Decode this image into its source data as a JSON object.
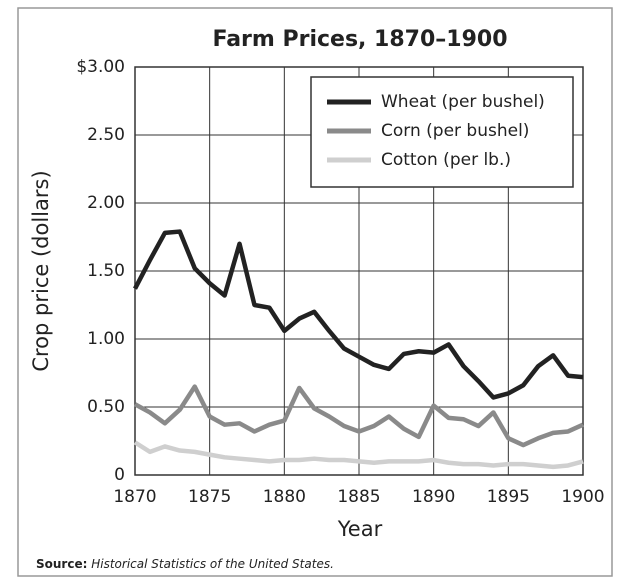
{
  "chart_data": {
    "type": "line",
    "title": "Farm Prices, 1870–1900",
    "x_label": "Year",
    "y_label": "Crop price  (dollars)",
    "x": [
      1870,
      1871,
      1872,
      1873,
      1874,
      1875,
      1876,
      1877,
      1878,
      1879,
      1880,
      1881,
      1882,
      1883,
      1884,
      1885,
      1886,
      1887,
      1888,
      1889,
      1890,
      1891,
      1892,
      1893,
      1894,
      1895,
      1896,
      1897,
      1898,
      1899,
      1900
    ],
    "series": [
      {
        "name": "Wheat (per bushel)",
        "color": "#222222",
        "values": [
          1.37,
          1.58,
          1.78,
          1.79,
          1.52,
          1.41,
          1.32,
          1.7,
          1.25,
          1.23,
          1.06,
          1.15,
          1.2,
          1.06,
          0.93,
          0.87,
          0.81,
          0.78,
          0.89,
          0.91,
          0.9,
          0.96,
          0.8,
          0.69,
          0.57,
          0.6,
          0.66,
          0.8,
          0.88,
          0.73,
          0.72
        ]
      },
      {
        "name": "Corn (per bushel)",
        "color": "#8a8a8a",
        "values": [
          0.52,
          0.46,
          0.38,
          0.48,
          0.65,
          0.43,
          0.37,
          0.38,
          0.32,
          0.37,
          0.4,
          0.64,
          0.49,
          0.43,
          0.36,
          0.32,
          0.36,
          0.43,
          0.34,
          0.28,
          0.51,
          0.42,
          0.41,
          0.36,
          0.46,
          0.27,
          0.22,
          0.27,
          0.31,
          0.32,
          0.37
        ]
      },
      {
        "name": "Cotton (per lb.)",
        "color": "#cfcfcf",
        "values": [
          0.24,
          0.17,
          0.21,
          0.18,
          0.17,
          0.15,
          0.13,
          0.12,
          0.11,
          0.1,
          0.11,
          0.11,
          0.12,
          0.11,
          0.11,
          0.1,
          0.09,
          0.1,
          0.1,
          0.1,
          0.11,
          0.09,
          0.08,
          0.08,
          0.07,
          0.08,
          0.08,
          0.07,
          0.06,
          0.07,
          0.1
        ]
      }
    ],
    "xlim": [
      1870,
      1900
    ],
    "xticks": [
      1870,
      1875,
      1880,
      1885,
      1890,
      1895,
      1900
    ],
    "ylim": [
      0,
      3
    ],
    "yticks": [
      0,
      {
        "value": 0.5,
        "label": "0.50"
      },
      {
        "value": 1,
        "label": "1.00"
      },
      {
        "value": 1.5,
        "label": "1.50"
      },
      {
        "value": 2,
        "label": "2.00"
      },
      {
        "value": 2.5,
        "label": "2.50"
      },
      {
        "value": 3,
        "label": "$3.00"
      }
    ],
    "grid": true,
    "legend": "upper right",
    "source": {
      "label": "Source:",
      "text": "Historical Statistics of the United States."
    }
  }
}
